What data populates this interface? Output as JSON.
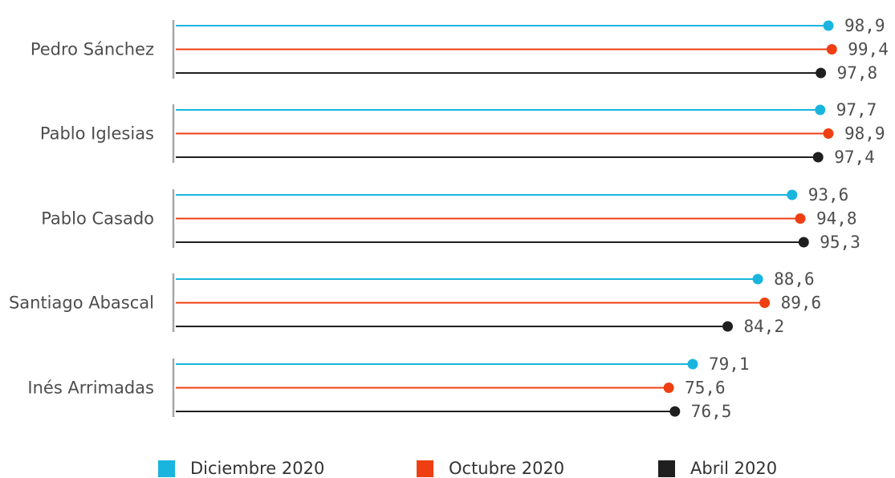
{
  "chart_data": {
    "type": "lollipop-bar",
    "orientation": "horizontal",
    "categories": [
      "Pedro Sánchez",
      "Pablo Iglesias",
      "Pablo Casado",
      "Santiago Abascal",
      "Inés Arrimadas"
    ],
    "series": [
      {
        "name": "Diciembre 2020",
        "color": "#19b5de",
        "values": [
          98.9,
          97.7,
          93.6,
          88.6,
          79.1
        ],
        "labels": [
          "98,9",
          "97,7",
          "93,6",
          "88,6",
          "79,1"
        ]
      },
      {
        "name": "Octubre 2020",
        "color": "#ef3f12",
        "values": [
          99.4,
          98.9,
          94.8,
          89.6,
          75.6
        ],
        "labels": [
          "99,4",
          "98,9",
          "94,8",
          "89,6",
          "75,6"
        ]
      },
      {
        "name": "Abril 2020",
        "color": "#1f1f1f",
        "values": [
          97.8,
          97.4,
          95.3,
          84.2,
          76.5
        ],
        "labels": [
          "97,8",
          "97,4",
          "95,3",
          "84,2",
          "76,5"
        ]
      }
    ],
    "legend": {
      "position": "bottom",
      "items": [
        {
          "name": "Diciembre 2020",
          "color": "#19b5de"
        },
        {
          "name": "Octubre 2020",
          "color": "#ef3f12"
        },
        {
          "name": "Abril 2020",
          "color": "#1f1f1f"
        }
      ]
    },
    "axis_color": "#a6a6a6",
    "grid": false
  }
}
